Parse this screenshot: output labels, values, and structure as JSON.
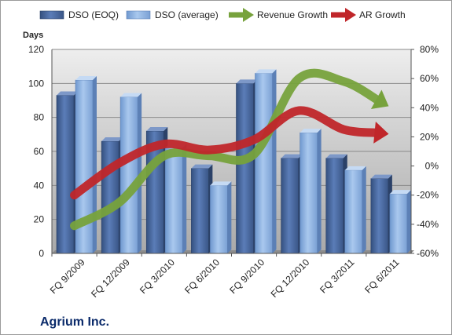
{
  "chart_data": {
    "type": "bar",
    "title": "Agrium Inc.",
    "categories": [
      "FQ 9/2009",
      "FQ 12/2009",
      "FQ 3/2010",
      "FQ 6/2010",
      "FQ 9/2010",
      "FQ 12/2010",
      "FQ 3/2011",
      "FQ 6/2011"
    ],
    "series": [
      {
        "name": "DSO (EOQ)",
        "type": "bar",
        "axis": "left",
        "color": "#4f6fa7",
        "values": [
          93,
          66,
          72,
          50,
          100,
          56,
          56,
          44
        ]
      },
      {
        "name": "DSO (average)",
        "type": "bar",
        "axis": "left",
        "color": "#8fb4e3",
        "values": [
          102,
          92,
          62,
          40,
          106,
          71,
          49,
          35
        ]
      },
      {
        "name": "Revenue Growth",
        "type": "line",
        "axis": "right",
        "color": "#77a23c",
        "values": [
          -41,
          -25,
          7,
          7,
          8,
          60,
          58,
          41
        ]
      },
      {
        "name": "AR Growth",
        "type": "line",
        "axis": "right",
        "color": "#c0262a",
        "values": [
          -20,
          2,
          15,
          11,
          18,
          38,
          25,
          22
        ]
      }
    ],
    "ylabel": "Days",
    "ylim": [
      0,
      120
    ],
    "y_ticks": [
      "0",
      "20",
      "40",
      "60",
      "80",
      "100",
      "120"
    ],
    "y2lim": [
      -60,
      80
    ],
    "y2_ticks": [
      "-60%",
      "-40%",
      "-20%",
      "0%",
      "20%",
      "40%",
      "60%",
      "80%"
    ],
    "legend": "top",
    "grid": true
  }
}
